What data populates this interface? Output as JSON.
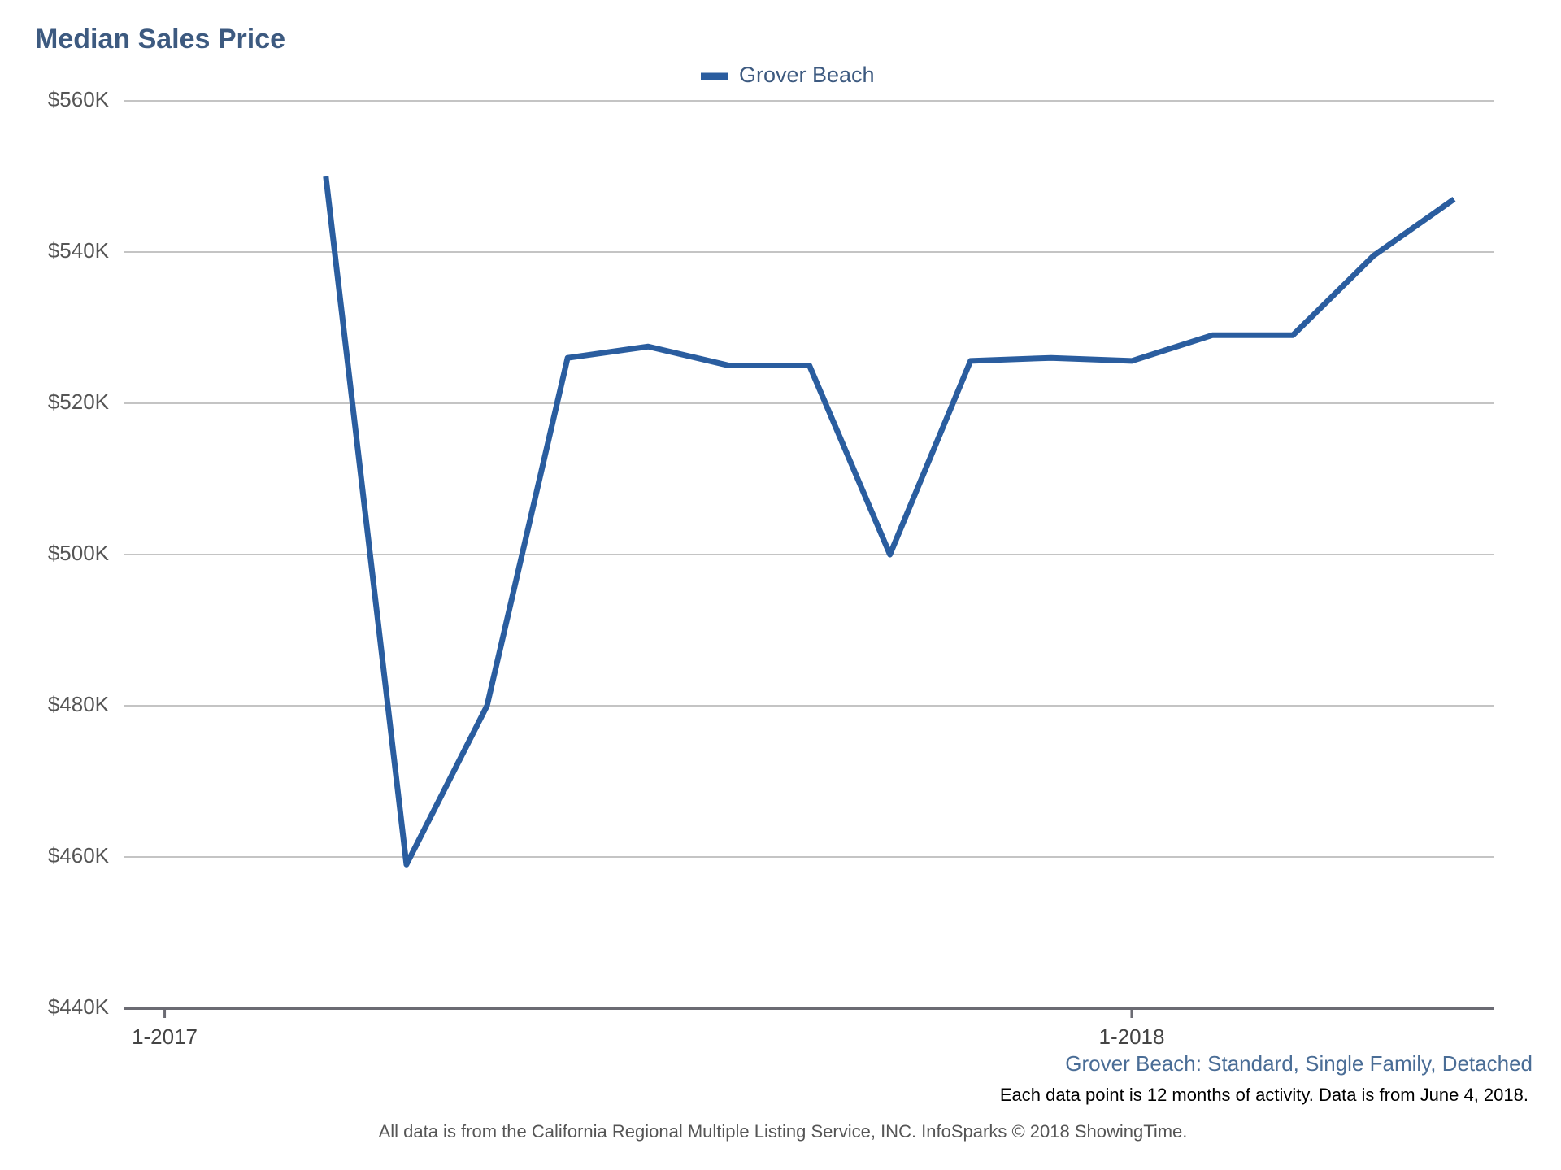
{
  "chart_data": {
    "type": "line",
    "title": "Median Sales Price",
    "categories": [
      "1-2017",
      null,
      null,
      null,
      null,
      null,
      null,
      null,
      null,
      null,
      null,
      null,
      "1-2018",
      null,
      null,
      null,
      null
    ],
    "series": [
      {
        "name": "Grover Beach",
        "color": "#2a5d9f",
        "values": [
          null,
          null,
          550000,
          459000,
          480000,
          526000,
          527500,
          525000,
          525000,
          500000,
          525600,
          526000,
          525600,
          529000,
          529000,
          539500,
          547000
        ]
      }
    ],
    "ylim": [
      440000,
      560000
    ],
    "yticks": [
      {
        "value": 440000,
        "label": "$440K"
      },
      {
        "value": 460000,
        "label": "$460K"
      },
      {
        "value": 480000,
        "label": "$480K"
      },
      {
        "value": 500000,
        "label": "$500K"
      },
      {
        "value": 520000,
        "label": "$520K"
      },
      {
        "value": 540000,
        "label": "$540K"
      },
      {
        "value": 560000,
        "label": "$560K"
      }
    ],
    "grid": true,
    "legend": "top",
    "subtitle": "Grover Beach: Standard, Single Family, Detached",
    "note": "Each data point is 12 months of activity. Data is from June 4, 2018.",
    "source": "All data is from the California Regional Multiple Listing Service, INC. InfoSparks © 2018 ShowingTime."
  }
}
